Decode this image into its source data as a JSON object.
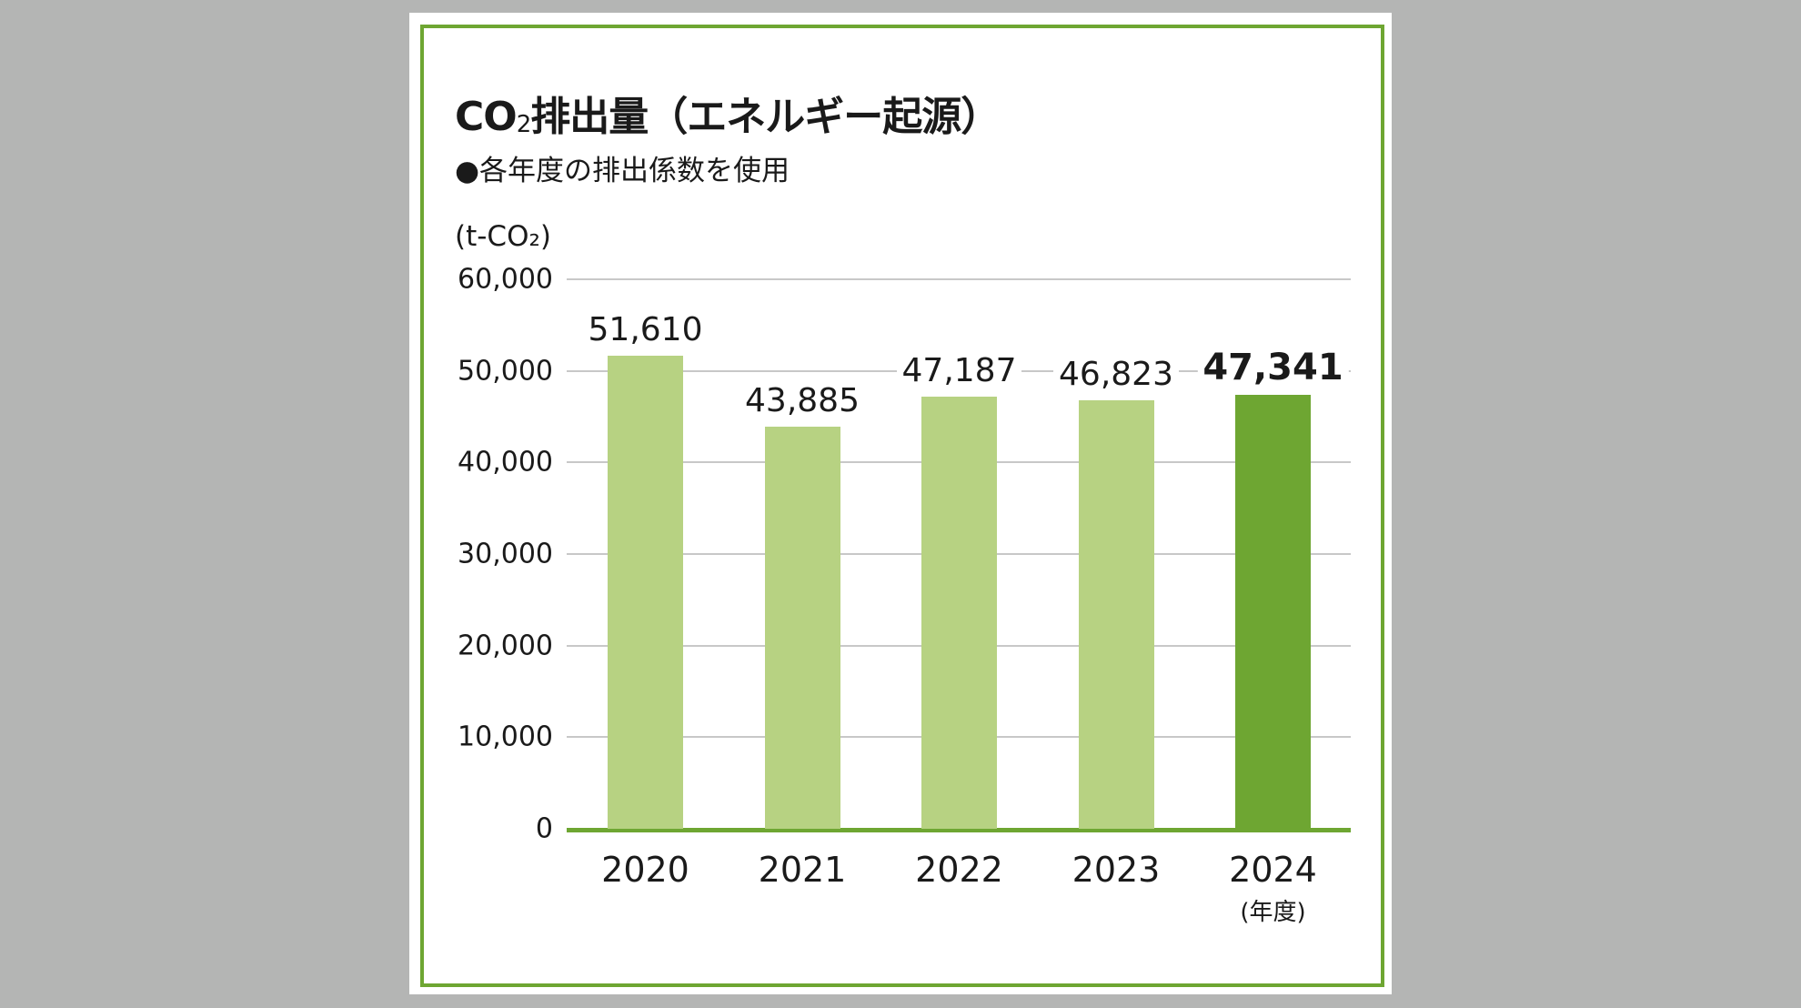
{
  "title": {
    "prefix": "CO",
    "sub": "2",
    "suffix": "排出量（エネルギー起源）"
  },
  "subtitle": "●各年度の排出係数を使用",
  "colors": {
    "bar": "#b7d282",
    "highlight": "#6ea632",
    "grid": "#c8c8c8",
    "frame": "#6ea632",
    "background": "#b4b5b4"
  },
  "chart_data": {
    "type": "bar",
    "title": "CO2排出量（エネルギー起源）",
    "subtitle": "●各年度の排出係数を使用",
    "xlabel": "（年度）",
    "ylabel": "(t-CO2)",
    "categories": [
      "2020",
      "2021",
      "2022",
      "2023",
      "2024"
    ],
    "values": [
      51610,
      43885,
      47187,
      46823,
      47341
    ],
    "value_labels": [
      "51,610",
      "43,885",
      "47,187",
      "46,823",
      "47,341"
    ],
    "highlight_index": 4,
    "yticks": [
      "0",
      "10,000",
      "20,000",
      "30,000",
      "40,000",
      "50,000",
      "60,000"
    ],
    "ylim": [
      0,
      60000
    ],
    "grid": true,
    "legend": null
  },
  "axis": {
    "unit_label": "(t-CO₂)",
    "x_unit": "(年度)"
  }
}
